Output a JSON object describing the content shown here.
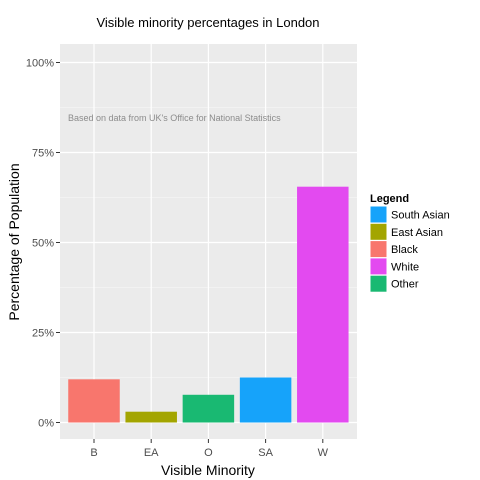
{
  "chart_data": {
    "type": "bar",
    "title": "Visible minority percentages in London",
    "xlabel": "Visible Minority",
    "ylabel": "Percentage of  Population",
    "annotation": "Based on data from UK's Office for National Statistics",
    "categories": [
      "B",
      "EA",
      "O",
      "SA",
      "W"
    ],
    "values": [
      12,
      3,
      7.7,
      12.5,
      65.5
    ],
    "bar_colors": [
      "#F8766D",
      "#A3A500",
      "#19B972",
      "#16A3FA",
      "#E34AF0"
    ],
    "ylim": [
      0,
      100
    ],
    "yticks": [
      0,
      25,
      50,
      75,
      100
    ],
    "ytick_labels": [
      "0%",
      "25%",
      "50%",
      "75%",
      "100%"
    ],
    "grid": true,
    "legend": {
      "title": "Legend",
      "position": "right",
      "items": [
        {
          "label": "South Asian",
          "color": "#16A3FA"
        },
        {
          "label": "East Asian",
          "color": "#A3A500"
        },
        {
          "label": "Black",
          "color": "#F8766D"
        },
        {
          "label": "White",
          "color": "#E34AF0"
        },
        {
          "label": "Other",
          "color": "#19B972"
        }
      ]
    }
  }
}
